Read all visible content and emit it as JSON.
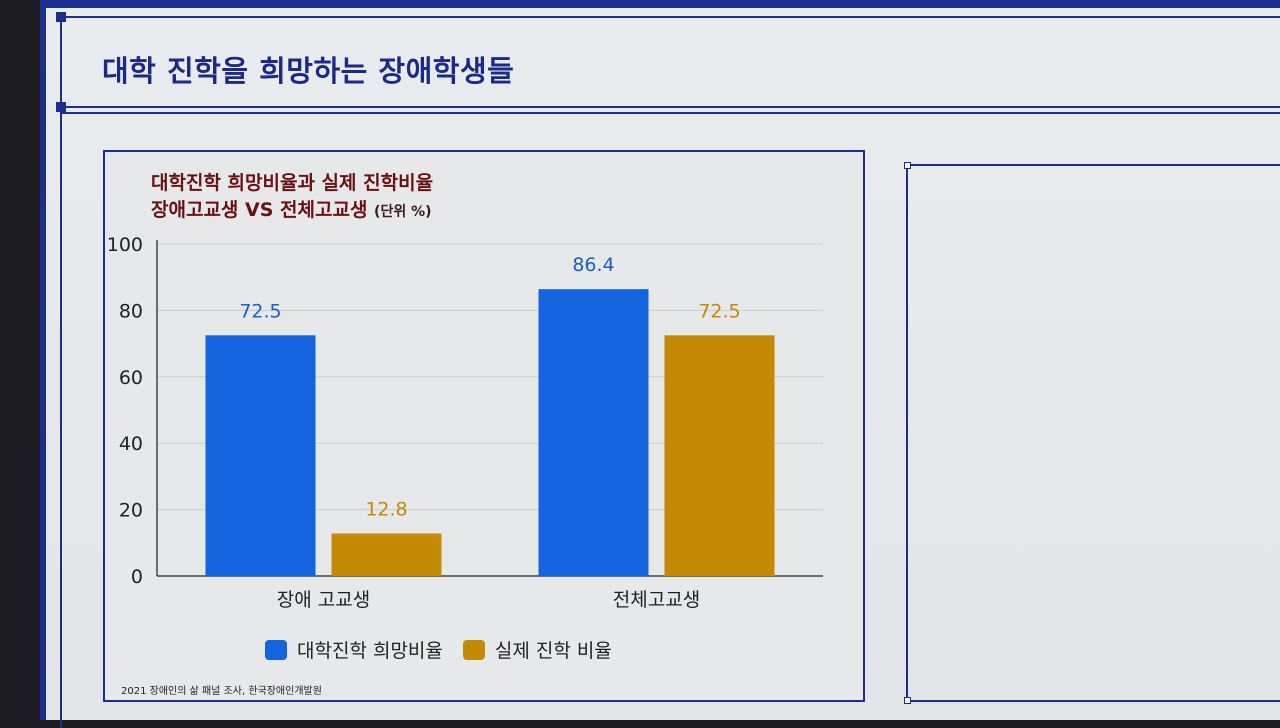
{
  "slide": {
    "title": "대학 진학을 희망하는 장애학생들"
  },
  "chart_data": {
    "type": "bar",
    "title_line1": "대학진학 희망비율과 실제 진학비율",
    "title_line2": "장애고교생 VS 전체고교생",
    "unit": "(단위 %)",
    "categories": [
      "장애 고교생",
      "전체고교생"
    ],
    "series": [
      {
        "name": "대학진학 희망비율",
        "values": [
          72.5,
          86.4
        ],
        "color": "#1464e0",
        "label_color": "#1a5fc8"
      },
      {
        "name": "실제 진학 비율",
        "values": [
          12.8,
          72.5
        ],
        "color": "#c48a06",
        "label_color": "#c48a06"
      }
    ],
    "data_labels": [
      [
        "72.5",
        "86.4"
      ],
      [
        "12.8",
        "72.5"
      ]
    ],
    "ylim": [
      0,
      100
    ],
    "yticks": [
      "0",
      "20",
      "40",
      "60",
      "80",
      "100"
    ],
    "grid": true,
    "legend_position": "bottom",
    "source": "2021 장애인의 삶 패널 조사, 한국장애인개발원"
  }
}
